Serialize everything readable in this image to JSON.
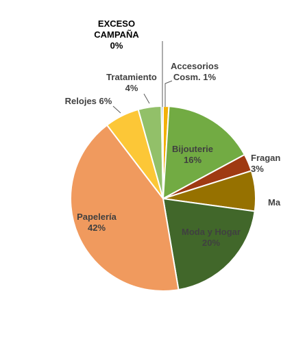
{
  "chart_data": {
    "type": "pie",
    "title": "",
    "categories": [
      "Accesorios Cosm.",
      "Bijouterie",
      "Fragan",
      "Ma",
      "Moda y Hogar",
      "Papelería",
      "Relojes",
      "Tratamiento",
      "EXCESO CAMPAÑA"
    ],
    "values": [
      1,
      16,
      3,
      7,
      20,
      42,
      6,
      4,
      0.3
    ],
    "display_labels": [
      [
        "Accesorios",
        "Cosm. 1%"
      ],
      [
        "Bijouterie",
        "16%"
      ],
      [
        "Fragan",
        "3%"
      ],
      [
        "Ma"
      ],
      [
        "Moda y Hogar",
        "20%"
      ],
      [
        "Papelería",
        "42%"
      ],
      [
        "Relojes 6%"
      ],
      [
        "Tratamiento",
        "4%"
      ],
      [
        "EXCESO",
        "CAMPAÑA",
        "0%"
      ]
    ],
    "colors": [
      "#F2B10A",
      "#72AB43",
      "#9F3A12",
      "#967100",
      "#41672A",
      "#F09A5E",
      "#FCC737",
      "#92C069",
      "#4A6FB8"
    ],
    "label_colors": [
      "#404040",
      "#404040",
      "#404040",
      "#404040",
      "#404040",
      "#404040",
      "#404040",
      "#404040",
      "#000000"
    ],
    "label_order": "clockwise from top"
  }
}
